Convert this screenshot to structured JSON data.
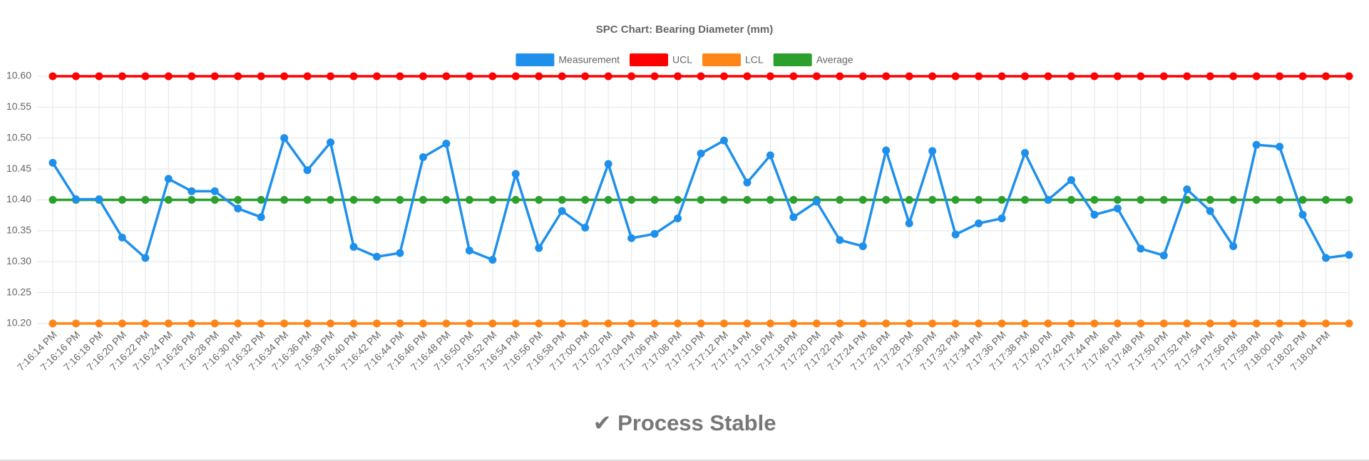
{
  "chart_data": {
    "type": "line",
    "title": "SPC Chart: Bearing Diameter (mm)",
    "status": "✔ Process Stable",
    "categories": [
      "7:16:14 PM",
      "7:16:16 PM",
      "7:16:18 PM",
      "7:16:20 PM",
      "7:16:22 PM",
      "7:16:24 PM",
      "7:16:26 PM",
      "7:16:28 PM",
      "7:16:30 PM",
      "7:16:32 PM",
      "7:16:34 PM",
      "7:16:36 PM",
      "7:16:38 PM",
      "7:16:40 PM",
      "7:16:42 PM",
      "7:16:44 PM",
      "7:16:46 PM",
      "7:16:48 PM",
      "7:16:50 PM",
      "7:16:52 PM",
      "7:16:54 PM",
      "7:16:56 PM",
      "7:16:58 PM",
      "7:17:00 PM",
      "7:17:02 PM",
      "7:17:04 PM",
      "7:17:06 PM",
      "7:17:08 PM",
      "7:17:10 PM",
      "7:17:12 PM",
      "7:17:14 PM",
      "7:17:16 PM",
      "7:17:18 PM",
      "7:17:20 PM",
      "7:17:22 PM",
      "7:17:24 PM",
      "7:17:26 PM",
      "7:17:28 PM",
      "7:17:30 PM",
      "7:17:32 PM",
      "7:17:34 PM",
      "7:17:36 PM",
      "7:17:38 PM",
      "7:17:40 PM",
      "7:17:42 PM",
      "7:17:44 PM",
      "7:17:46 PM",
      "7:17:48 PM",
      "7:17:50 PM",
      "7:17:52 PM",
      "7:17:54 PM",
      "7:17:56 PM",
      "7:17:58 PM",
      "7:18:00 PM",
      "7:18:02 PM",
      "7:18:04 PM",
      null
    ],
    "series": [
      {
        "name": "Measurement",
        "color": "#1e90ec",
        "values": [
          10.46,
          10.401,
          10.401,
          10.339,
          10.306,
          10.434,
          10.414,
          10.414,
          10.386,
          10.372,
          10.5,
          10.448,
          10.493,
          10.324,
          10.308,
          10.314,
          10.469,
          10.491,
          10.318,
          10.303,
          10.442,
          10.322,
          10.382,
          10.355,
          10.458,
          10.338,
          10.345,
          10.37,
          10.475,
          10.496,
          10.428,
          10.472,
          10.372,
          10.397,
          10.335,
          10.325,
          10.48,
          10.362,
          10.479,
          10.344,
          10.362,
          10.37,
          10.476,
          10.4,
          10.432,
          10.376,
          10.386,
          10.321,
          10.31,
          10.417,
          10.382,
          10.325,
          10.489,
          10.486,
          10.376,
          10.306,
          10.311
        ]
      },
      {
        "name": "UCL",
        "color": "#ff0000",
        "values": [
          10.6,
          10.6,
          10.6,
          10.6,
          10.6,
          10.6,
          10.6,
          10.6,
          10.6,
          10.6,
          10.6,
          10.6,
          10.6,
          10.6,
          10.6,
          10.6,
          10.6,
          10.6,
          10.6,
          10.6,
          10.6,
          10.6,
          10.6,
          10.6,
          10.6,
          10.6,
          10.6,
          10.6,
          10.6,
          10.6,
          10.6,
          10.6,
          10.6,
          10.6,
          10.6,
          10.6,
          10.6,
          10.6,
          10.6,
          10.6,
          10.6,
          10.6,
          10.6,
          10.6,
          10.6,
          10.6,
          10.6,
          10.6,
          10.6,
          10.6,
          10.6,
          10.6,
          10.6,
          10.6,
          10.6,
          10.6,
          10.6
        ]
      },
      {
        "name": "LCL",
        "color": "#ff8518",
        "values": [
          10.2,
          10.2,
          10.2,
          10.2,
          10.2,
          10.2,
          10.2,
          10.2,
          10.2,
          10.2,
          10.2,
          10.2,
          10.2,
          10.2,
          10.2,
          10.2,
          10.2,
          10.2,
          10.2,
          10.2,
          10.2,
          10.2,
          10.2,
          10.2,
          10.2,
          10.2,
          10.2,
          10.2,
          10.2,
          10.2,
          10.2,
          10.2,
          10.2,
          10.2,
          10.2,
          10.2,
          10.2,
          10.2,
          10.2,
          10.2,
          10.2,
          10.2,
          10.2,
          10.2,
          10.2,
          10.2,
          10.2,
          10.2,
          10.2,
          10.2,
          10.2,
          10.2,
          10.2,
          10.2,
          10.2,
          10.2,
          10.2
        ]
      },
      {
        "name": "Average",
        "color": "#2ca02c",
        "values": [
          10.4,
          10.4,
          10.4,
          10.4,
          10.4,
          10.4,
          10.4,
          10.4,
          10.4,
          10.4,
          10.4,
          10.4,
          10.4,
          10.4,
          10.4,
          10.4,
          10.4,
          10.4,
          10.4,
          10.4,
          10.4,
          10.4,
          10.4,
          10.4,
          10.4,
          10.4,
          10.4,
          10.4,
          10.4,
          10.4,
          10.4,
          10.4,
          10.4,
          10.4,
          10.4,
          10.4,
          10.4,
          10.4,
          10.4,
          10.4,
          10.4,
          10.4,
          10.4,
          10.4,
          10.4,
          10.4,
          10.4,
          10.4,
          10.4,
          10.4,
          10.4,
          10.4,
          10.4,
          10.4,
          10.4,
          10.4,
          10.4
        ]
      }
    ],
    "ylim": [
      10.2,
      10.6
    ],
    "yticks": [
      {
        "value": 10.2,
        "label": "10.20"
      },
      10.25,
      {
        "value": 10.3,
        "label": "10.30"
      },
      10.35,
      {
        "value": 10.4,
        "label": "10.40"
      },
      10.45,
      {
        "value": 10.5,
        "label": "10.50"
      },
      10.55,
      {
        "value": 10.6,
        "label": "10.60"
      }
    ],
    "grid": true,
    "legend": "top"
  }
}
